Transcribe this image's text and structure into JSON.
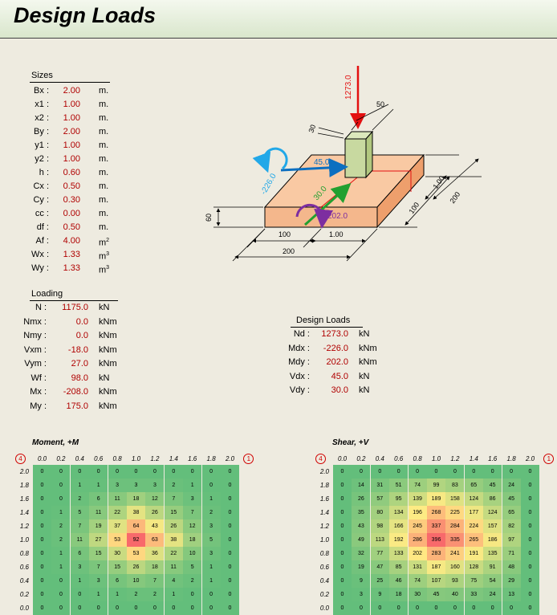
{
  "page_title": "Design Loads",
  "sizes": {
    "title": "Sizes",
    "rows": [
      {
        "label": "Bx :",
        "value": "2.00",
        "unit": "m."
      },
      {
        "label": "x1 :",
        "value": "1.00",
        "unit": "m."
      },
      {
        "label": "x2 :",
        "value": "1.00",
        "unit": "m."
      },
      {
        "label": "By :",
        "value": "2.00",
        "unit": "m."
      },
      {
        "label": "y1 :",
        "value": "1.00",
        "unit": "m."
      },
      {
        "label": "y2 :",
        "value": "1.00",
        "unit": "m."
      },
      {
        "label": "h :",
        "value": "0.60",
        "unit": "m."
      },
      {
        "label": "Cx :",
        "value": "0.50",
        "unit": "m."
      },
      {
        "label": "Cy :",
        "value": "0.30",
        "unit": "m."
      },
      {
        "label": "cc :",
        "value": "0.00",
        "unit": "m."
      },
      {
        "label": "df :",
        "value": "0.50",
        "unit": "m."
      },
      {
        "label": "Af :",
        "value": "4.00",
        "unit": "m",
        "sup": "2"
      },
      {
        "label": "Wx :",
        "value": "1.33",
        "unit": "m",
        "sup": "3"
      },
      {
        "label": "Wy :",
        "value": "1.33",
        "unit": "m",
        "sup": "3"
      }
    ]
  },
  "loading": {
    "title": "Loading",
    "rows": [
      {
        "label": "N :",
        "value": "1175.0",
        "unit": "kN"
      },
      {
        "label": "Nmx :",
        "value": "0.0",
        "unit": "kNm"
      },
      {
        "label": "Nmy :",
        "value": "0.0",
        "unit": "kNm"
      },
      {
        "label": "Vxm :",
        "value": "-18.0",
        "unit": "kNm"
      },
      {
        "label": "Vym :",
        "value": "27.0",
        "unit": "kNm"
      },
      {
        "label": "Wf :",
        "value": "98.0",
        "unit": "kN"
      },
      {
        "label": "Mx :",
        "value": "-208.0",
        "unit": "kNm"
      },
      {
        "label": "My :",
        "value": "175.0",
        "unit": "kNm"
      }
    ]
  },
  "design_loads": {
    "title": "Design Loads",
    "rows": [
      {
        "label": "Nd :",
        "value": "1273.0",
        "unit": "kN"
      },
      {
        "label": "Mdx :",
        "value": "-226.0",
        "unit": "kNm"
      },
      {
        "label": "Mdy :",
        "value": "202.0",
        "unit": "kNm"
      },
      {
        "label": "Vdx :",
        "value": "45.0",
        "unit": "kN"
      },
      {
        "label": "Vdy :",
        "value": "30.0",
        "unit": "kN"
      }
    ]
  },
  "diagram": {
    "axial_load": "1273.0",
    "column_x": "50",
    "column_y": "30",
    "moment_x": "-226.0",
    "shear_x": "45.0",
    "shear_y": "30.0",
    "moment_y": "202.0",
    "thickness": "60",
    "dim_x1": "100",
    "dim_x2": "1.00",
    "dim_bx": "200",
    "dim_y1": "100",
    "dim_y2": "1.00",
    "dim_by": "200"
  },
  "colors": {
    "red": "#e31010",
    "blue": "#0c6fc0",
    "cyan": "#22a8e8",
    "green": "#22a030",
    "purple": "#7d2ea0",
    "slab": "#f9c9a3",
    "column": "#c8d9a0"
  },
  "heatmaps": {
    "x_ticks": [
      "0.0",
      "0.2",
      "0.4",
      "0.6",
      "0.8",
      "1.0",
      "1.2",
      "1.4",
      "1.6",
      "1.8",
      "2.0"
    ],
    "y_ticks": [
      "2.0",
      "1.8",
      "1.6",
      "1.4",
      "1.2",
      "1.0",
      "0.8",
      "0.6",
      "0.4",
      "0.2",
      "0.0"
    ],
    "corner_left": "4",
    "corner_right": "1",
    "moment": {
      "title": "Moment, +M",
      "rows": [
        [
          0,
          0,
          0,
          0,
          0,
          0,
          0,
          0,
          0,
          0,
          0
        ],
        [
          0,
          0,
          1,
          1,
          3,
          3,
          3,
          2,
          1,
          0,
          0
        ],
        [
          0,
          0,
          2,
          6,
          11,
          18,
          12,
          7,
          3,
          1,
          0
        ],
        [
          0,
          1,
          5,
          11,
          22,
          38,
          26,
          15,
          7,
          2,
          0
        ],
        [
          0,
          2,
          7,
          19,
          37,
          64,
          43,
          26,
          12,
          3,
          0
        ],
        [
          0,
          2,
          11,
          27,
          53,
          92,
          63,
          38,
          18,
          5,
          0
        ],
        [
          0,
          1,
          6,
          15,
          30,
          53,
          36,
          22,
          10,
          3,
          0
        ],
        [
          0,
          1,
          3,
          7,
          15,
          26,
          18,
          11,
          5,
          1,
          0
        ],
        [
          0,
          0,
          1,
          3,
          6,
          10,
          7,
          4,
          2,
          1,
          0
        ],
        [
          0,
          0,
          0,
          1,
          1,
          2,
          2,
          1,
          0,
          0,
          0
        ],
        [
          0,
          0,
          0,
          0,
          0,
          0,
          0,
          0,
          0,
          0,
          0
        ]
      ]
    },
    "shear": {
      "title": "Shear, +V",
      "rows": [
        [
          0,
          0,
          0,
          0,
          0,
          0,
          0,
          0,
          0,
          0,
          0
        ],
        [
          0,
          14,
          31,
          51,
          74,
          99,
          83,
          65,
          45,
          24,
          0
        ],
        [
          0,
          26,
          57,
          95,
          139,
          189,
          158,
          124,
          86,
          45,
          0
        ],
        [
          0,
          35,
          80,
          134,
          196,
          268,
          225,
          177,
          124,
          65,
          0
        ],
        [
          0,
          43,
          98,
          166,
          245,
          337,
          284,
          224,
          157,
          82,
          0
        ],
        [
          0,
          49,
          113,
          192,
          286,
          396,
          335,
          265,
          186,
          97,
          0
        ],
        [
          0,
          32,
          77,
          133,
          202,
          283,
          241,
          191,
          135,
          71,
          0
        ],
        [
          0,
          19,
          47,
          85,
          131,
          187,
          160,
          128,
          91,
          48,
          0
        ],
        [
          0,
          9,
          25,
          46,
          74,
          107,
          93,
          75,
          54,
          29,
          0
        ],
        [
          0,
          3,
          9,
          18,
          30,
          45,
          40,
          33,
          24,
          13,
          0
        ],
        [
          0,
          0,
          0,
          0,
          0,
          0,
          0,
          0,
          0,
          0,
          0
        ]
      ]
    }
  }
}
